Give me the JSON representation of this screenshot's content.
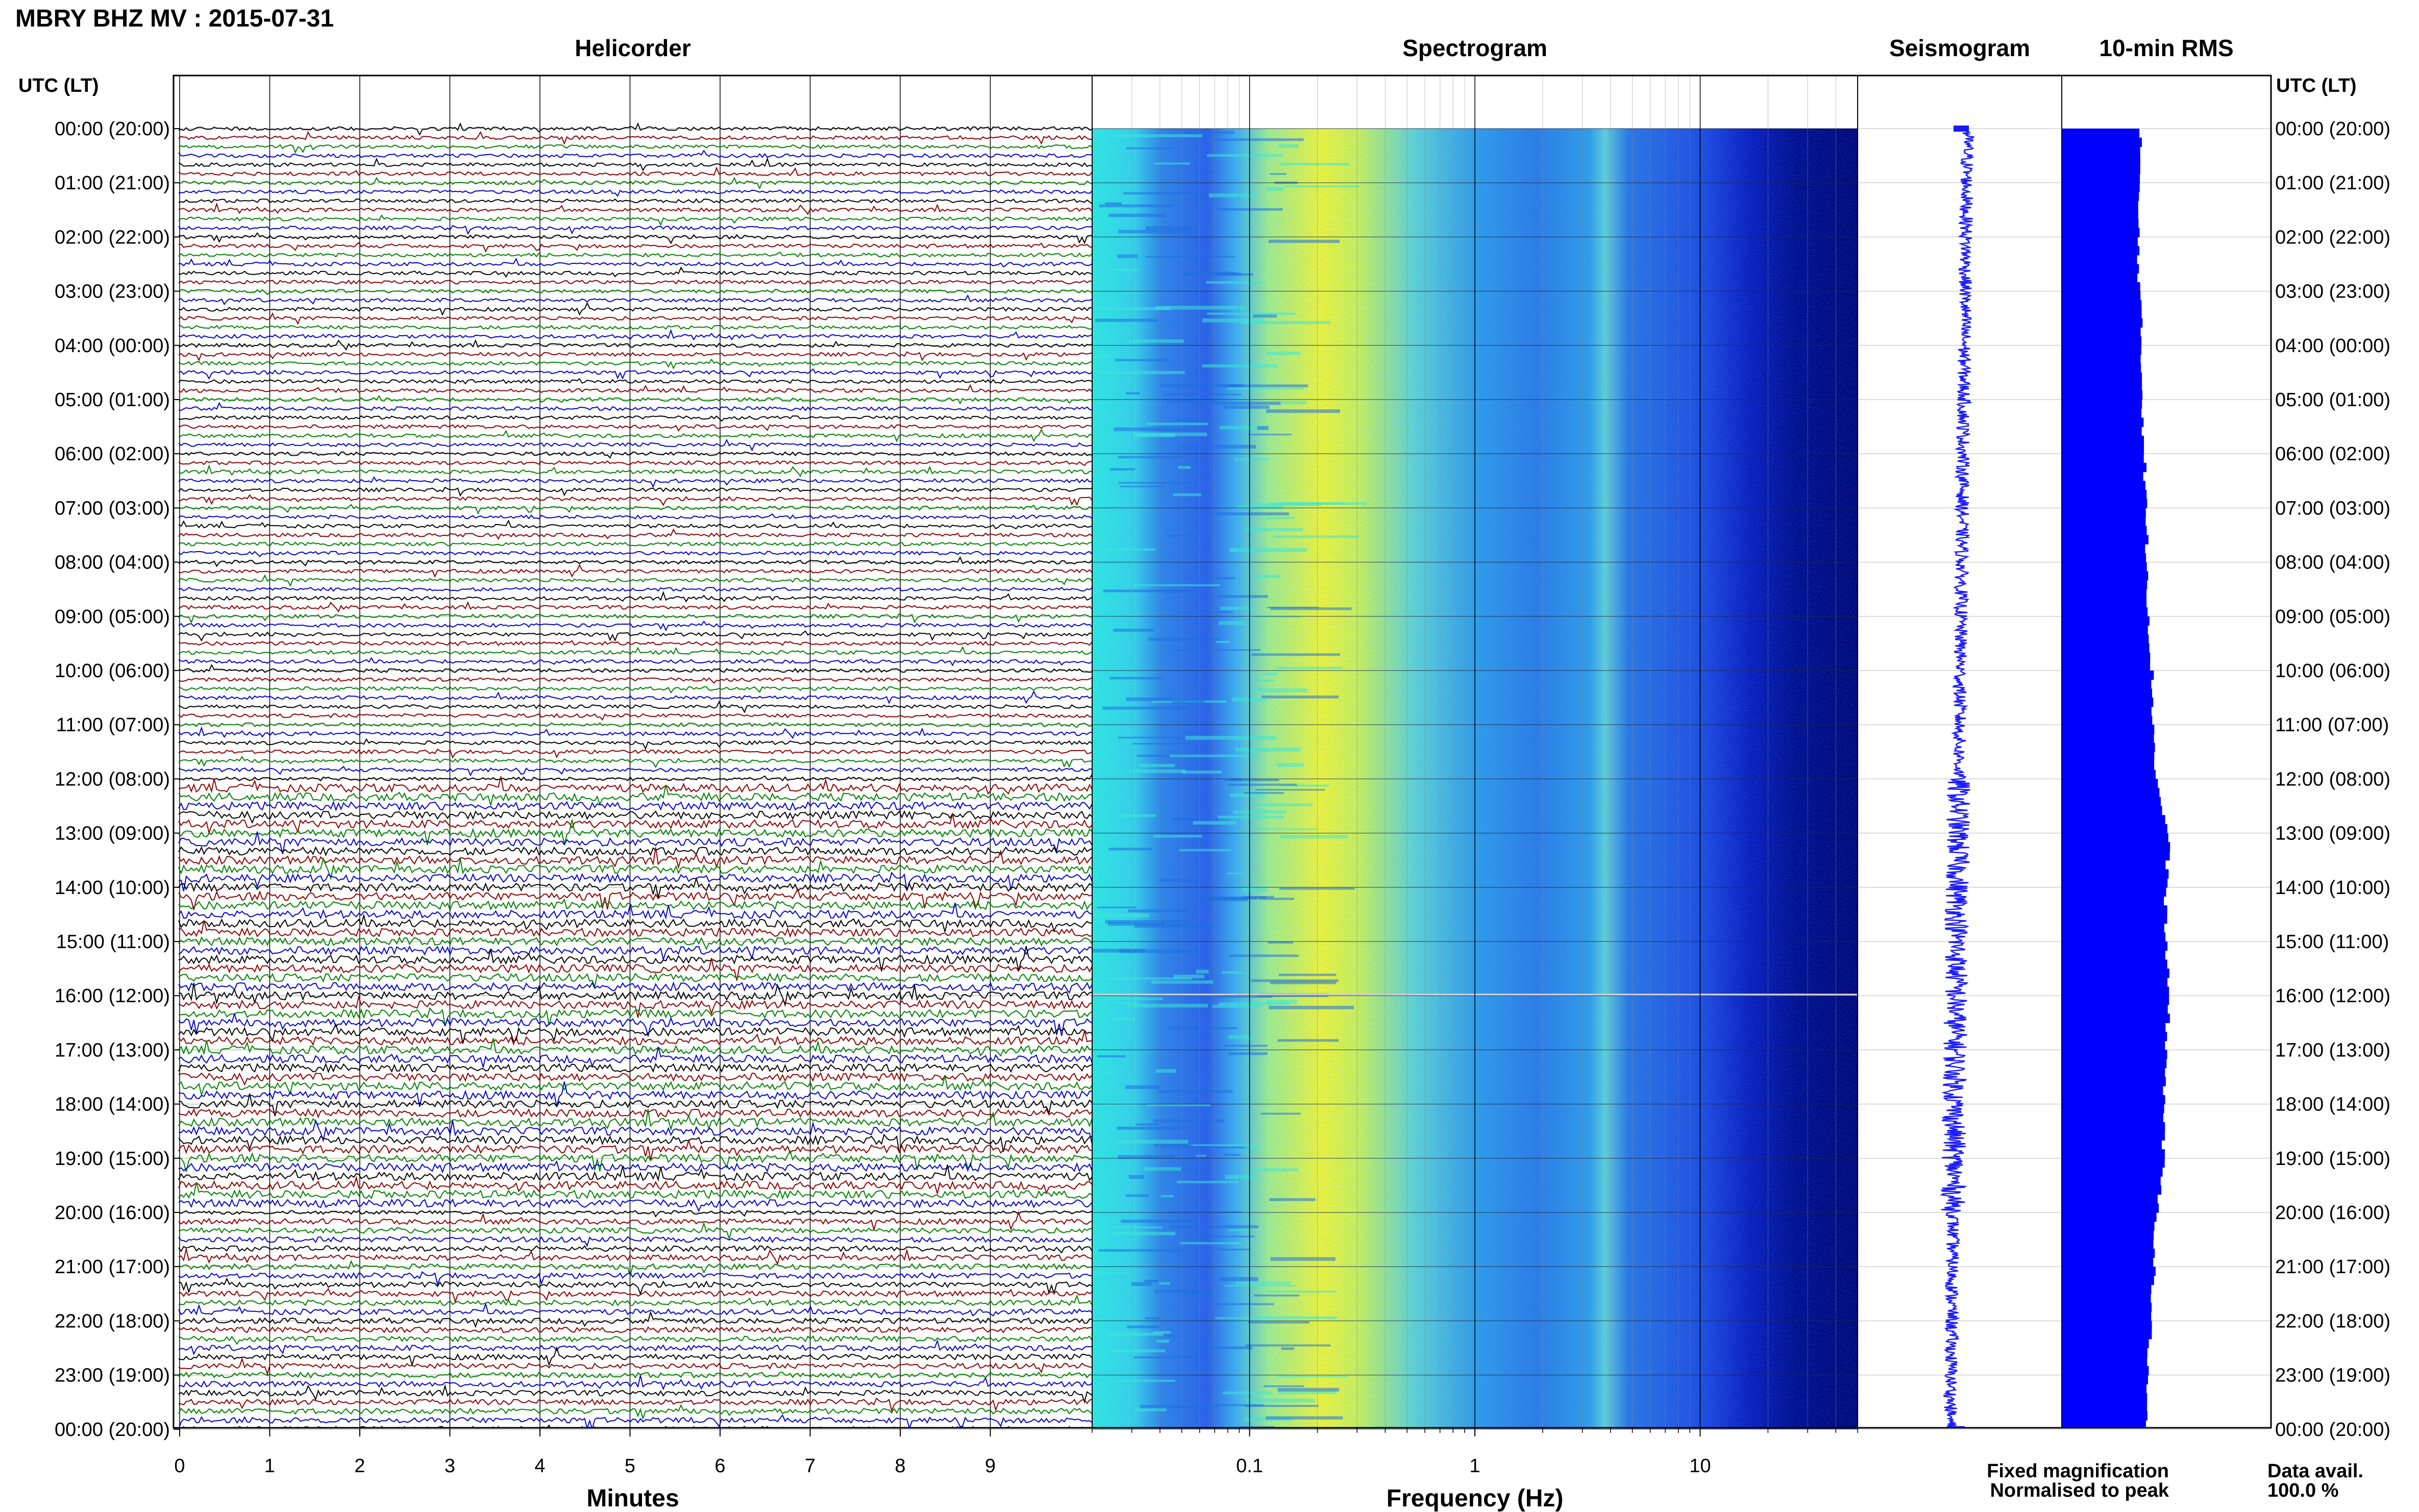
{
  "title": "MBRY BHZ MV : 2015-07-31",
  "panels": {
    "helicorder": "Helicorder",
    "spectrogram": "Spectrogram",
    "seismogram": "Seismogram",
    "rms": "10-min RMS"
  },
  "axis": {
    "left_header": "UTC (LT)",
    "right_header": "UTC (LT)",
    "minutes_label": "Minutes",
    "frequency_label": "Frequency (Hz)"
  },
  "time_labels": [
    "00:00 (20:00)",
    "01:00 (21:00)",
    "02:00 (22:00)",
    "03:00 (23:00)",
    "04:00 (00:00)",
    "05:00 (01:00)",
    "06:00 (02:00)",
    "07:00 (03:00)",
    "08:00 (04:00)",
    "09:00 (05:00)",
    "10:00 (06:00)",
    "11:00 (07:00)",
    "12:00 (08:00)",
    "13:00 (09:00)",
    "14:00 (10:00)",
    "15:00 (11:00)",
    "16:00 (12:00)",
    "17:00 (13:00)",
    "18:00 (14:00)",
    "19:00 (15:00)",
    "20:00 (16:00)",
    "21:00 (17:00)",
    "22:00 (18:00)",
    "23:00 (19:00)",
    "00:00 (20:00)"
  ],
  "minute_ticks": [
    "0",
    "1",
    "2",
    "3",
    "4",
    "5",
    "6",
    "7",
    "8",
    "9"
  ],
  "freq_ticks": [
    {
      "label": "0.1",
      "value": 0.1
    },
    {
      "label": "1",
      "value": 1
    },
    {
      "label": "10",
      "value": 10
    }
  ],
  "legend": {
    "fixed": "Fixed magnification",
    "normalised": "Normalised to peak",
    "fixed_color": "#0000ff",
    "normalised_color": "#ff0000"
  },
  "data_avail": {
    "label": "Data avail.",
    "value": "100.0 %"
  },
  "colors": {
    "trace_cycle": [
      "#000000",
      "#8b0000",
      "#008000",
      "#0000cd"
    ],
    "seismogram": "#1a1aff",
    "rms": "#0000ff"
  },
  "chart_data": [
    {
      "type": "line",
      "name": "helicorder",
      "title": "Helicorder",
      "xlabel": "Minutes",
      "x_range": [
        0,
        10
      ],
      "lines": 144,
      "minutes_per_line": 10,
      "line_color_cycle": [
        "black",
        "darkred",
        "green",
        "blue"
      ]
    },
    {
      "type": "heatmap",
      "name": "spectrogram",
      "title": "Spectrogram",
      "xlabel": "Frequency (Hz)",
      "x_scale": "log",
      "x_range": [
        0.02,
        50
      ],
      "dominant_band_hz": [
        0.2,
        0.6
      ]
    },
    {
      "type": "line",
      "name": "seismogram",
      "title": "Seismogram",
      "duration_hours": 24
    },
    {
      "type": "bar",
      "name": "10-min RMS",
      "title": "10-min RMS",
      "interval_minutes": 10,
      "hourly_relative": [
        0.52,
        0.5,
        0.5,
        0.51,
        0.52,
        0.53,
        0.54,
        0.55,
        0.56,
        0.57,
        0.59,
        0.6,
        0.62,
        0.7,
        0.68,
        0.68,
        0.7,
        0.68,
        0.67,
        0.66,
        0.62,
        0.6,
        0.58,
        0.56,
        0.54
      ]
    }
  ]
}
